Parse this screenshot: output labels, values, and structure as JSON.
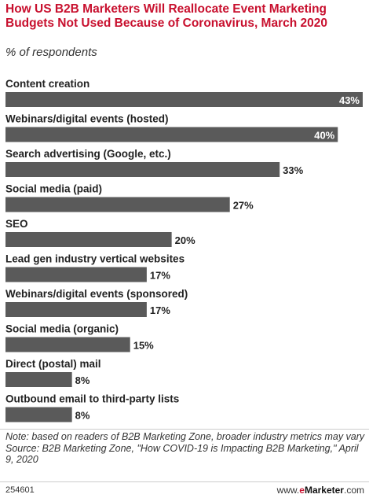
{
  "title": "How US B2B Marketers Will Reallocate Event Marketing Budgets Not Used Because of Coronavirus, March 2020",
  "subtitle": "% of respondents",
  "chart_data": {
    "type": "bar",
    "orientation": "horizontal",
    "categories": [
      "Content creation",
      "Webinars/digital events (hosted)",
      "Search advertising (Google, etc.)",
      "Social media (paid)",
      "SEO",
      "Lead gen industry vertical websites",
      "Webinars/digital events (sponsored)",
      "Social media (organic)",
      "Direct (postal) mail",
      "Outbound email to third-party lists"
    ],
    "values": [
      43,
      40,
      33,
      27,
      20,
      17,
      17,
      15,
      8,
      8
    ],
    "value_labels": [
      "43%",
      "40%",
      "33%",
      "27%",
      "20%",
      "17%",
      "17%",
      "15%",
      "8%",
      "8%"
    ],
    "xlim": [
      0,
      43
    ],
    "bar_color": "#5a5a5a",
    "grid": false
  },
  "note": "Note: based on readers of B2B Marketing Zone, broader industry metrics may vary",
  "source": "Source: B2B Marketing Zone, \"How COVID-19 is Impacting B2B Marketing,\" April 9, 2020",
  "chart_id": "254601",
  "brand": {
    "prefix": "www.",
    "e": "e",
    "name": "Marketer",
    "suffix": ".com"
  }
}
